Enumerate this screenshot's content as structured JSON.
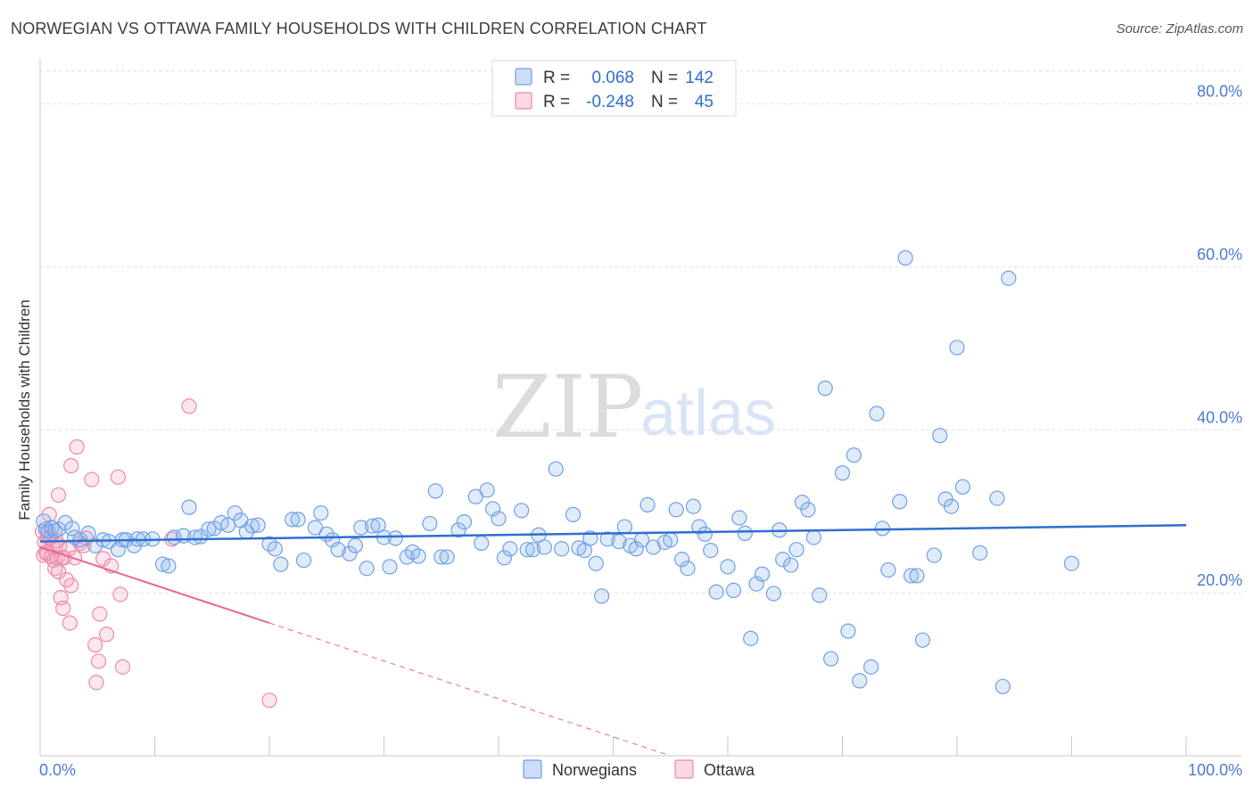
{
  "title": "NORWEGIAN VS OTTAWA FAMILY HOUSEHOLDS WITH CHILDREN CORRELATION CHART",
  "source": "Source: ZipAtlas.com",
  "watermark": {
    "zip": "ZIP",
    "atlas": "atlas"
  },
  "colors": {
    "norwegians": "#6fa0e6",
    "norwegians_fill": "rgba(142,182,238,0.28)",
    "norwegians_line": "#2f6ecf",
    "ottawa": "#ee88aa",
    "ottawa_fill": "rgba(244,170,195,0.28)",
    "ottawa_line": "#e2689a",
    "grid": "#e2e2e2",
    "tick": "#4a7bd0"
  },
  "legend": {
    "rows": [
      {
        "r_label": "R =",
        "r_value": "0.068",
        "n_label": "N =",
        "n_value": "142"
      },
      {
        "r_label": "R =",
        "r_value": "-0.248",
        "n_label": "N =",
        "n_value": "45"
      }
    ]
  },
  "chart_data": {
    "type": "scatter",
    "xlabel": "",
    "ylabel": "Family Households with Children",
    "xlim": [
      0,
      100
    ],
    "ylim": [
      0,
      84
    ],
    "y_ticks": [
      20,
      40,
      60,
      80
    ],
    "y_tick_labels": [
      "20.0%",
      "40.0%",
      "60.0%",
      "80.0%"
    ],
    "x_tick_labels": [
      "0.0%",
      "100.0%"
    ],
    "grid": true,
    "legend_position": "top-center",
    "series": [
      {
        "name": "Norwegians",
        "r": 0.068,
        "n": 142,
        "trend": {
          "x": [
            0,
            100
          ],
          "y": [
            26.3,
            28.3
          ]
        },
        "points": [
          [
            0.3,
            28.8
          ],
          [
            0.5,
            27.8
          ],
          [
            0.7,
            27.5
          ],
          [
            1.0,
            28.0
          ],
          [
            1.3,
            27.6
          ],
          [
            1.6,
            27.8
          ],
          [
            2.2,
            28.6
          ],
          [
            2.8,
            27.9
          ],
          [
            3.0,
            26.8
          ],
          [
            3.5,
            26.5
          ],
          [
            4.2,
            27.3
          ],
          [
            4.8,
            25.8
          ],
          [
            5.5,
            26.5
          ],
          [
            6.0,
            26.3
          ],
          [
            6.8,
            25.3
          ],
          [
            7.2,
            26.5
          ],
          [
            7.5,
            26.5
          ],
          [
            8.2,
            25.8
          ],
          [
            8.5,
            26.6
          ],
          [
            9.0,
            26.6
          ],
          [
            9.8,
            26.6
          ],
          [
            10.7,
            23.5
          ],
          [
            11.2,
            23.3
          ],
          [
            11.7,
            26.8
          ],
          [
            12.5,
            27.0
          ],
          [
            13.0,
            30.5
          ],
          [
            13.5,
            26.8
          ],
          [
            14.0,
            26.9
          ],
          [
            14.7,
            27.8
          ],
          [
            15.2,
            27.9
          ],
          [
            15.8,
            28.6
          ],
          [
            16.4,
            28.3
          ],
          [
            17.0,
            29.8
          ],
          [
            17.5,
            28.9
          ],
          [
            18.0,
            27.5
          ],
          [
            18.5,
            28.2
          ],
          [
            19.0,
            28.3
          ],
          [
            20.0,
            26.0
          ],
          [
            20.5,
            25.4
          ],
          [
            21.0,
            23.5
          ],
          [
            22.0,
            29.0
          ],
          [
            22.5,
            29.0
          ],
          [
            23.0,
            24.0
          ],
          [
            24.0,
            28.0
          ],
          [
            24.5,
            29.8
          ],
          [
            25.0,
            27.2
          ],
          [
            25.5,
            26.5
          ],
          [
            26.0,
            25.3
          ],
          [
            27.0,
            24.8
          ],
          [
            27.5,
            25.8
          ],
          [
            28.0,
            28.0
          ],
          [
            28.5,
            23.0
          ],
          [
            29.0,
            28.2
          ],
          [
            29.5,
            28.3
          ],
          [
            30.0,
            26.8
          ],
          [
            30.5,
            23.2
          ],
          [
            31.0,
            26.7
          ],
          [
            32.0,
            24.4
          ],
          [
            32.5,
            25.0
          ],
          [
            33.0,
            24.5
          ],
          [
            34.0,
            28.5
          ],
          [
            34.5,
            32.5
          ],
          [
            35.0,
            24.4
          ],
          [
            35.5,
            24.4
          ],
          [
            36.5,
            27.7
          ],
          [
            37.0,
            28.7
          ],
          [
            38.0,
            31.8
          ],
          [
            38.5,
            26.1
          ],
          [
            39.0,
            32.6
          ],
          [
            39.5,
            30.3
          ],
          [
            40.0,
            29.1
          ],
          [
            40.5,
            24.3
          ],
          [
            41.0,
            25.4
          ],
          [
            42.0,
            30.1
          ],
          [
            42.5,
            25.3
          ],
          [
            43.0,
            25.3
          ],
          [
            43.5,
            27.1
          ],
          [
            44.0,
            25.6
          ],
          [
            45.0,
            35.2
          ],
          [
            45.5,
            25.4
          ],
          [
            46.5,
            29.6
          ],
          [
            47.0,
            25.5
          ],
          [
            47.5,
            25.2
          ],
          [
            48.0,
            26.7
          ],
          [
            48.5,
            23.6
          ],
          [
            49.0,
            19.6
          ],
          [
            49.5,
            26.6
          ],
          [
            50.5,
            26.3
          ],
          [
            51.0,
            28.1
          ],
          [
            51.5,
            25.8
          ],
          [
            52.0,
            25.4
          ],
          [
            52.5,
            26.5
          ],
          [
            53.0,
            30.8
          ],
          [
            53.5,
            25.6
          ],
          [
            54.5,
            26.2
          ],
          [
            55.0,
            26.5
          ],
          [
            55.5,
            30.2
          ],
          [
            56.0,
            24.1
          ],
          [
            56.5,
            23.0
          ],
          [
            57.0,
            30.6
          ],
          [
            57.5,
            28.1
          ],
          [
            58.0,
            27.2
          ],
          [
            58.5,
            25.2
          ],
          [
            59.0,
            20.1
          ],
          [
            60.0,
            23.2
          ],
          [
            60.5,
            20.3
          ],
          [
            61.0,
            29.2
          ],
          [
            61.5,
            27.3
          ],
          [
            62.0,
            14.4
          ],
          [
            62.5,
            21.1
          ],
          [
            63.0,
            22.3
          ],
          [
            64.0,
            19.9
          ],
          [
            64.5,
            27.7
          ],
          [
            64.8,
            24.1
          ],
          [
            65.5,
            23.4
          ],
          [
            66.0,
            25.3
          ],
          [
            66.5,
            31.1
          ],
          [
            67.0,
            30.2
          ],
          [
            67.5,
            26.8
          ],
          [
            68.0,
            19.7
          ],
          [
            68.5,
            45.1
          ],
          [
            69.0,
            11.9
          ],
          [
            70.0,
            34.7
          ],
          [
            70.5,
            15.3
          ],
          [
            71.0,
            36.9
          ],
          [
            71.5,
            9.2
          ],
          [
            72.5,
            10.9
          ],
          [
            73.0,
            42.0
          ],
          [
            73.5,
            27.9
          ],
          [
            74.0,
            22.8
          ],
          [
            75.0,
            31.2
          ],
          [
            75.5,
            61.1
          ],
          [
            76.0,
            22.1
          ],
          [
            76.5,
            22.1
          ],
          [
            77.0,
            14.2
          ],
          [
            78.0,
            24.6
          ],
          [
            78.5,
            39.3
          ],
          [
            79.0,
            31.5
          ],
          [
            79.5,
            30.6
          ],
          [
            80.0,
            50.1
          ],
          [
            80.5,
            33.0
          ],
          [
            82.0,
            24.9
          ],
          [
            83.5,
            31.6
          ],
          [
            84.0,
            8.5
          ],
          [
            84.5,
            58.6
          ],
          [
            90.0,
            23.6
          ]
        ]
      },
      {
        "name": "Ottawa",
        "r": -0.248,
        "n": 45,
        "trend": {
          "x": [
            0,
            20
          ],
          "y": [
            25.6,
            16.3
          ]
        },
        "trend_dashed": {
          "x": [
            20,
            55
          ],
          "y": [
            16.3,
            0.0
          ]
        },
        "points": [
          [
            0.2,
            27.5
          ],
          [
            0.3,
            24.6
          ],
          [
            0.4,
            26.2
          ],
          [
            0.5,
            25.0
          ],
          [
            0.6,
            24.8
          ],
          [
            0.7,
            26.8
          ],
          [
            0.8,
            29.6
          ],
          [
            0.9,
            26.8
          ],
          [
            1.0,
            24.5
          ],
          [
            1.1,
            25.6
          ],
          [
            1.2,
            24.0
          ],
          [
            1.3,
            23.0
          ],
          [
            1.4,
            26.4
          ],
          [
            1.5,
            24.3
          ],
          [
            1.6,
            22.6
          ],
          [
            1.7,
            25.8
          ],
          [
            1.8,
            19.4
          ],
          [
            1.9,
            24.3
          ],
          [
            2.0,
            18.1
          ],
          [
            2.1,
            24.3
          ],
          [
            2.3,
            21.6
          ],
          [
            2.5,
            25.4
          ],
          [
            2.6,
            16.3
          ],
          [
            2.7,
            20.9
          ],
          [
            3.0,
            24.3
          ],
          [
            3.2,
            37.9
          ],
          [
            3.5,
            26.1
          ],
          [
            3.8,
            25.8
          ],
          [
            4.0,
            26.7
          ],
          [
            4.5,
            33.9
          ],
          [
            4.8,
            13.6
          ],
          [
            4.9,
            9.0
          ],
          [
            5.1,
            11.6
          ],
          [
            5.2,
            17.4
          ],
          [
            5.5,
            24.2
          ],
          [
            5.8,
            14.9
          ],
          [
            6.2,
            23.3
          ],
          [
            6.8,
            34.2
          ],
          [
            7.0,
            19.8
          ],
          [
            7.2,
            10.9
          ],
          [
            11.5,
            26.6
          ],
          [
            13.0,
            42.9
          ],
          [
            20.0,
            6.8
          ],
          [
            2.7,
            35.6
          ],
          [
            1.6,
            32.0
          ]
        ]
      }
    ]
  },
  "bottom_legend": {
    "items": [
      "Norwegians",
      "Ottawa"
    ]
  }
}
